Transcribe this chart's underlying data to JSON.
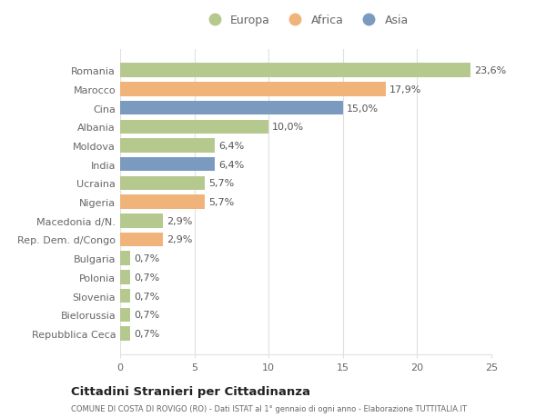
{
  "countries": [
    "Romania",
    "Marocco",
    "Cina",
    "Albania",
    "Moldova",
    "India",
    "Ucraina",
    "Nigeria",
    "Macedonia d/N.",
    "Rep. Dem. d/Congo",
    "Bulgaria",
    "Polonia",
    "Slovenia",
    "Bielorussia",
    "Repubblica Ceca"
  ],
  "values": [
    23.6,
    17.9,
    15.0,
    10.0,
    6.4,
    6.4,
    5.7,
    5.7,
    2.9,
    2.9,
    0.7,
    0.7,
    0.7,
    0.7,
    0.7
  ],
  "labels": [
    "23,6%",
    "17,9%",
    "15,0%",
    "10,0%",
    "6,4%",
    "6,4%",
    "5,7%",
    "5,7%",
    "2,9%",
    "2,9%",
    "0,7%",
    "0,7%",
    "0,7%",
    "0,7%",
    "0,7%"
  ],
  "continents": [
    "Europa",
    "Africa",
    "Asia",
    "Europa",
    "Europa",
    "Asia",
    "Europa",
    "Africa",
    "Europa",
    "Africa",
    "Europa",
    "Europa",
    "Europa",
    "Europa",
    "Europa"
  ],
  "colors": {
    "Europa": "#b5c98e",
    "Africa": "#f0b47a",
    "Asia": "#7a9bbf"
  },
  "legend_order": [
    "Europa",
    "Africa",
    "Asia"
  ],
  "xlim": [
    0,
    25
  ],
  "xticks": [
    0,
    5,
    10,
    15,
    20,
    25
  ],
  "title": "Cittadini Stranieri per Cittadinanza",
  "subtitle": "COMUNE DI COSTA DI ROVIGO (RO) - Dati ISTAT al 1° gennaio di ogni anno - Elaborazione TUTTITALIA.IT",
  "bg_color": "#ffffff",
  "grid_color": "#e0e0e0",
  "bar_height": 0.75,
  "label_fontsize": 8,
  "tick_fontsize": 8,
  "label_color": "#555555",
  "tick_color": "#666666"
}
